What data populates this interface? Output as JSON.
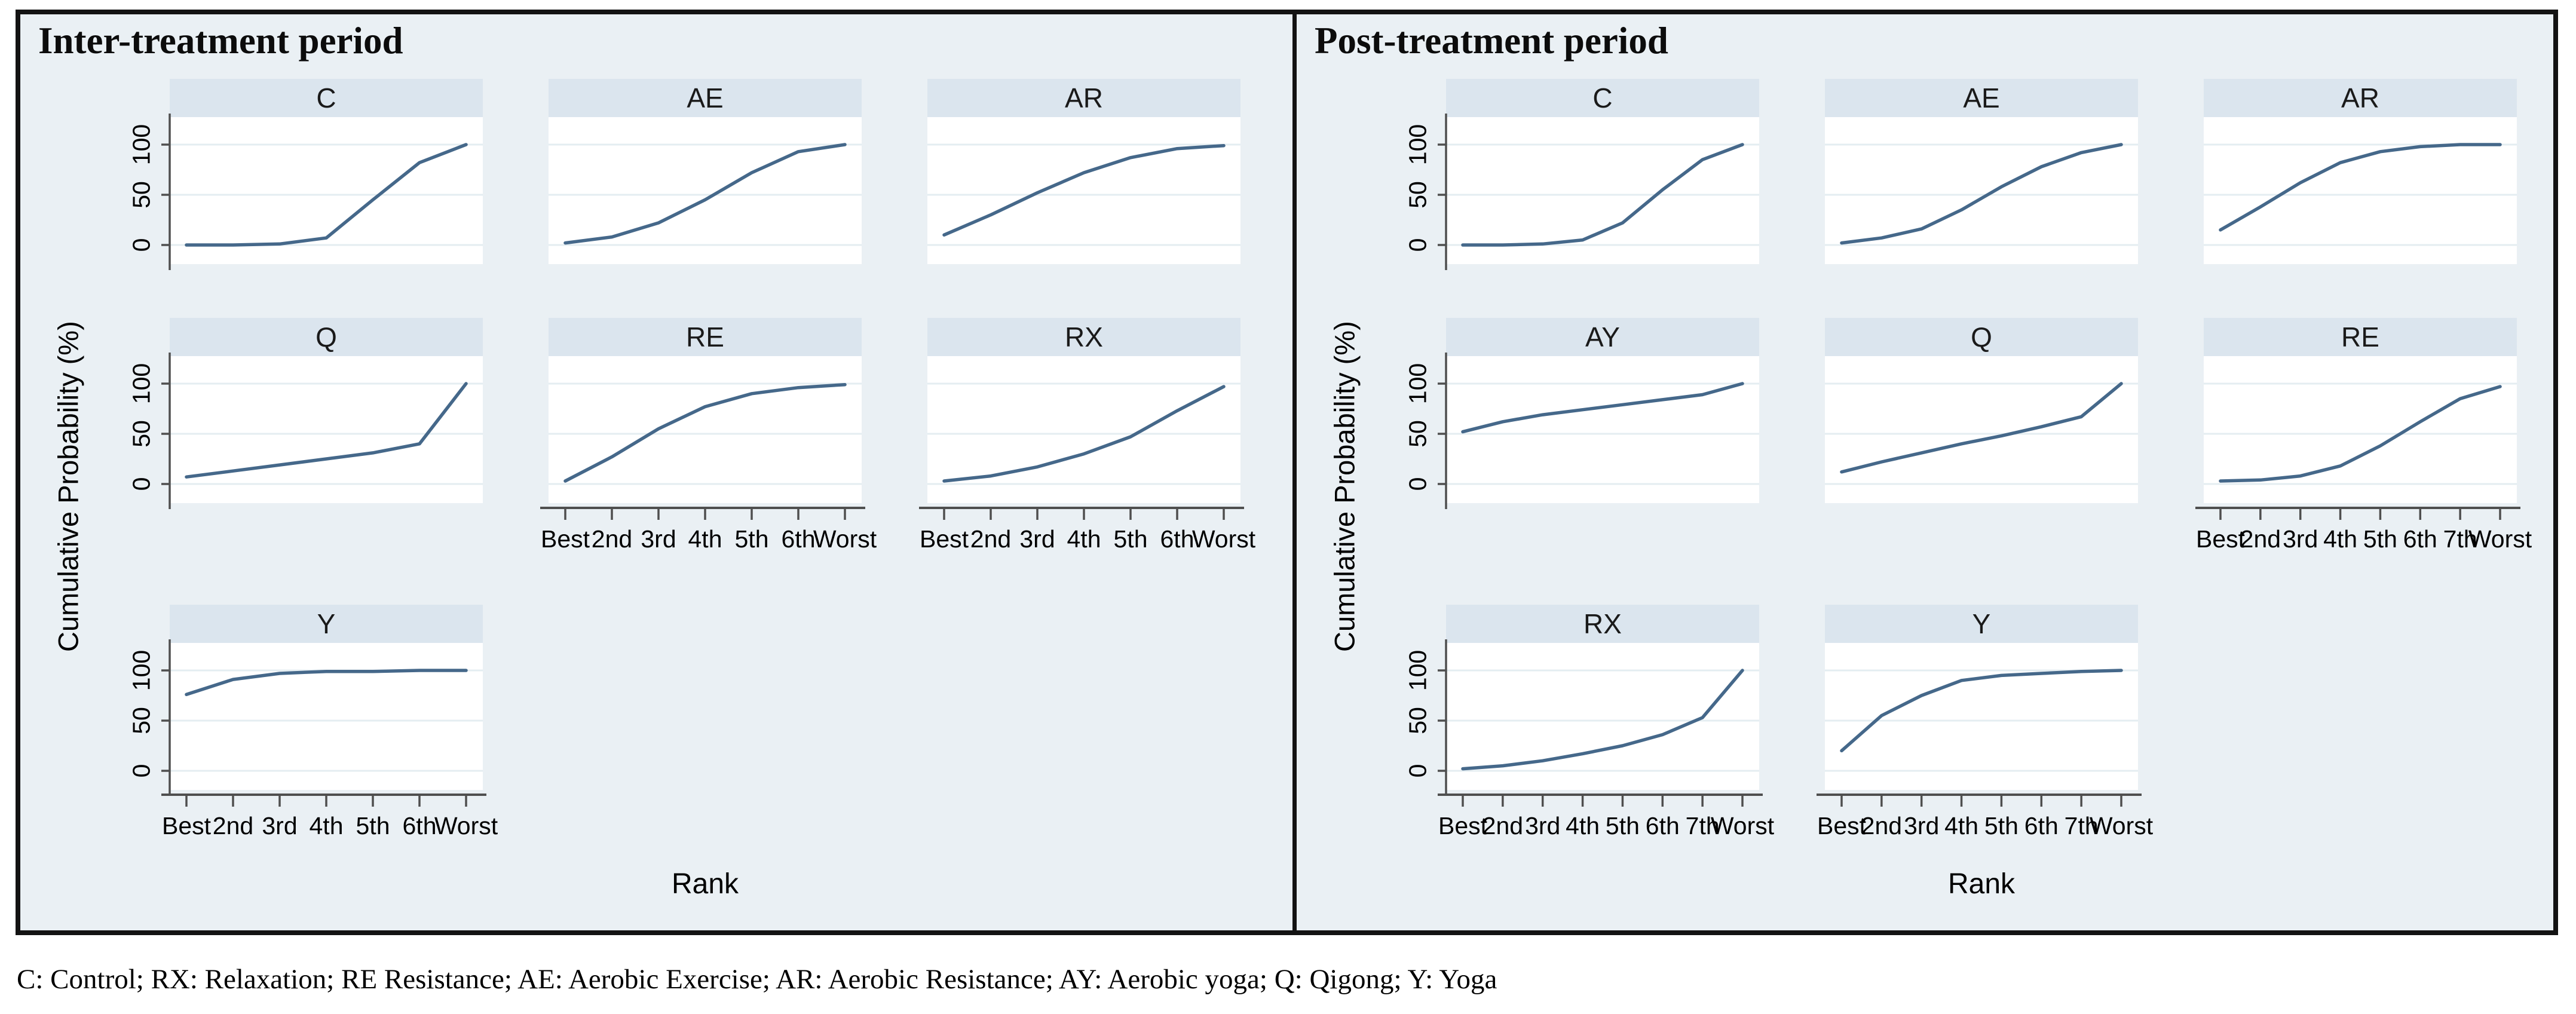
{
  "figure": {
    "caption": "C: Control; RX: Relaxation; RE Resistance; AE: Aerobic Exercise; AR: Aerobic Resistance; AY: Aerobic yoga; Q: Qigong; Y: Yoga"
  },
  "colors": {
    "panel_bg": "#eaf0f4",
    "header_bg": "#dbe5ee",
    "plot_bg": "#ffffff",
    "gridline": "#e4edf1",
    "line": "#45688a",
    "axis": "#4f4f4f",
    "frame": "#131313",
    "text": "#000000"
  },
  "chart_data": [
    {
      "type": "line",
      "title": "Inter-treatment period",
      "xlabel": "Rank",
      "ylabel": "Cumulative Probability (%)",
      "ylim": [
        0,
        100
      ],
      "y_ticks": [
        0,
        50,
        100
      ],
      "grid": true,
      "legend_position": "none",
      "facet_layout": "3 columns per row, y tick labels on first column only, x tick labels on bottom facet of each column",
      "categories": [
        "Best",
        "2nd",
        "3rd",
        "4th",
        "5th",
        "6th",
        "Worst"
      ],
      "series": [
        {
          "name": "C",
          "values": [
            0,
            0,
            1,
            7,
            45,
            82,
            100
          ]
        },
        {
          "name": "AE",
          "values": [
            2,
            8,
            22,
            45,
            72,
            93,
            100
          ]
        },
        {
          "name": "AR",
          "values": [
            10,
            30,
            52,
            72,
            87,
            96,
            99
          ]
        },
        {
          "name": "Q",
          "values": [
            7,
            13,
            19,
            25,
            31,
            40,
            100
          ]
        },
        {
          "name": "RE",
          "values": [
            3,
            27,
            55,
            77,
            90,
            96,
            99
          ]
        },
        {
          "name": "RX",
          "values": [
            3,
            8,
            17,
            30,
            47,
            73,
            97
          ]
        },
        {
          "name": "Y",
          "values": [
            76,
            91,
            97,
            99,
            99,
            100,
            100
          ]
        }
      ]
    },
    {
      "type": "line",
      "title": "Post-treatment period",
      "xlabel": "Rank",
      "ylabel": "Cumulative Probability (%)",
      "ylim": [
        0,
        100
      ],
      "y_ticks": [
        0,
        50,
        100
      ],
      "grid": true,
      "legend_position": "none",
      "facet_layout": "3 columns per row, y tick labels on first column only, x tick labels on bottom facet of each column",
      "categories": [
        "Best",
        "2nd",
        "3rd",
        "4th",
        "5th",
        "6th",
        "7th",
        "Worst"
      ],
      "series": [
        {
          "name": "C",
          "values": [
            0,
            0,
            1,
            5,
            22,
            55,
            85,
            100
          ]
        },
        {
          "name": "AE",
          "values": [
            2,
            7,
            16,
            35,
            58,
            78,
            92,
            100
          ]
        },
        {
          "name": "AR",
          "values": [
            15,
            38,
            62,
            82,
            93,
            98,
            100,
            100
          ]
        },
        {
          "name": "AY",
          "values": [
            52,
            62,
            69,
            74,
            79,
            84,
            89,
            100
          ]
        },
        {
          "name": "Q",
          "values": [
            12,
            22,
            31,
            40,
            48,
            57,
            67,
            100
          ]
        },
        {
          "name": "RE",
          "values": [
            3,
            4,
            8,
            18,
            38,
            62,
            85,
            97
          ]
        },
        {
          "name": "RX",
          "values": [
            2,
            5,
            10,
            17,
            25,
            36,
            53,
            100
          ]
        },
        {
          "name": "Y",
          "values": [
            20,
            55,
            75,
            90,
            95,
            97,
            99,
            100
          ]
        }
      ]
    }
  ]
}
